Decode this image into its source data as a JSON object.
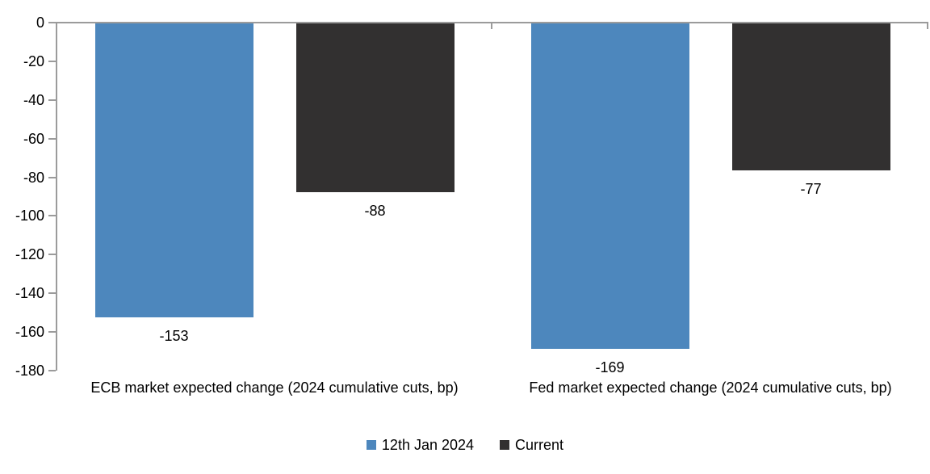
{
  "chart_data": {
    "type": "bar",
    "categories": [
      "ECB market expected change (2024 cumulative cuts, bp)",
      "Fed market expected change (2024 cumulative cuts, bp)"
    ],
    "series": [
      {
        "name": "12th Jan 2024",
        "color": "#4D87BD",
        "values": [
          -153,
          -169
        ]
      },
      {
        "name": "Current",
        "color": "#323030",
        "values": [
          -88,
          -77
        ]
      }
    ],
    "data_labels": [
      [
        "-153",
        "-169"
      ],
      [
        "-88",
        "-77"
      ]
    ],
    "title": "",
    "xlabel": "",
    "ylabel": "",
    "ylim": [
      -180,
      0
    ],
    "yticks": [
      0,
      -20,
      -40,
      -60,
      -80,
      -100,
      -120,
      -140,
      -160,
      -180
    ],
    "grid": false,
    "legend_position": "bottom",
    "axis_color": "#9B9B9B",
    "text_color": "#000000",
    "background_color": "#FFFFFF"
  }
}
